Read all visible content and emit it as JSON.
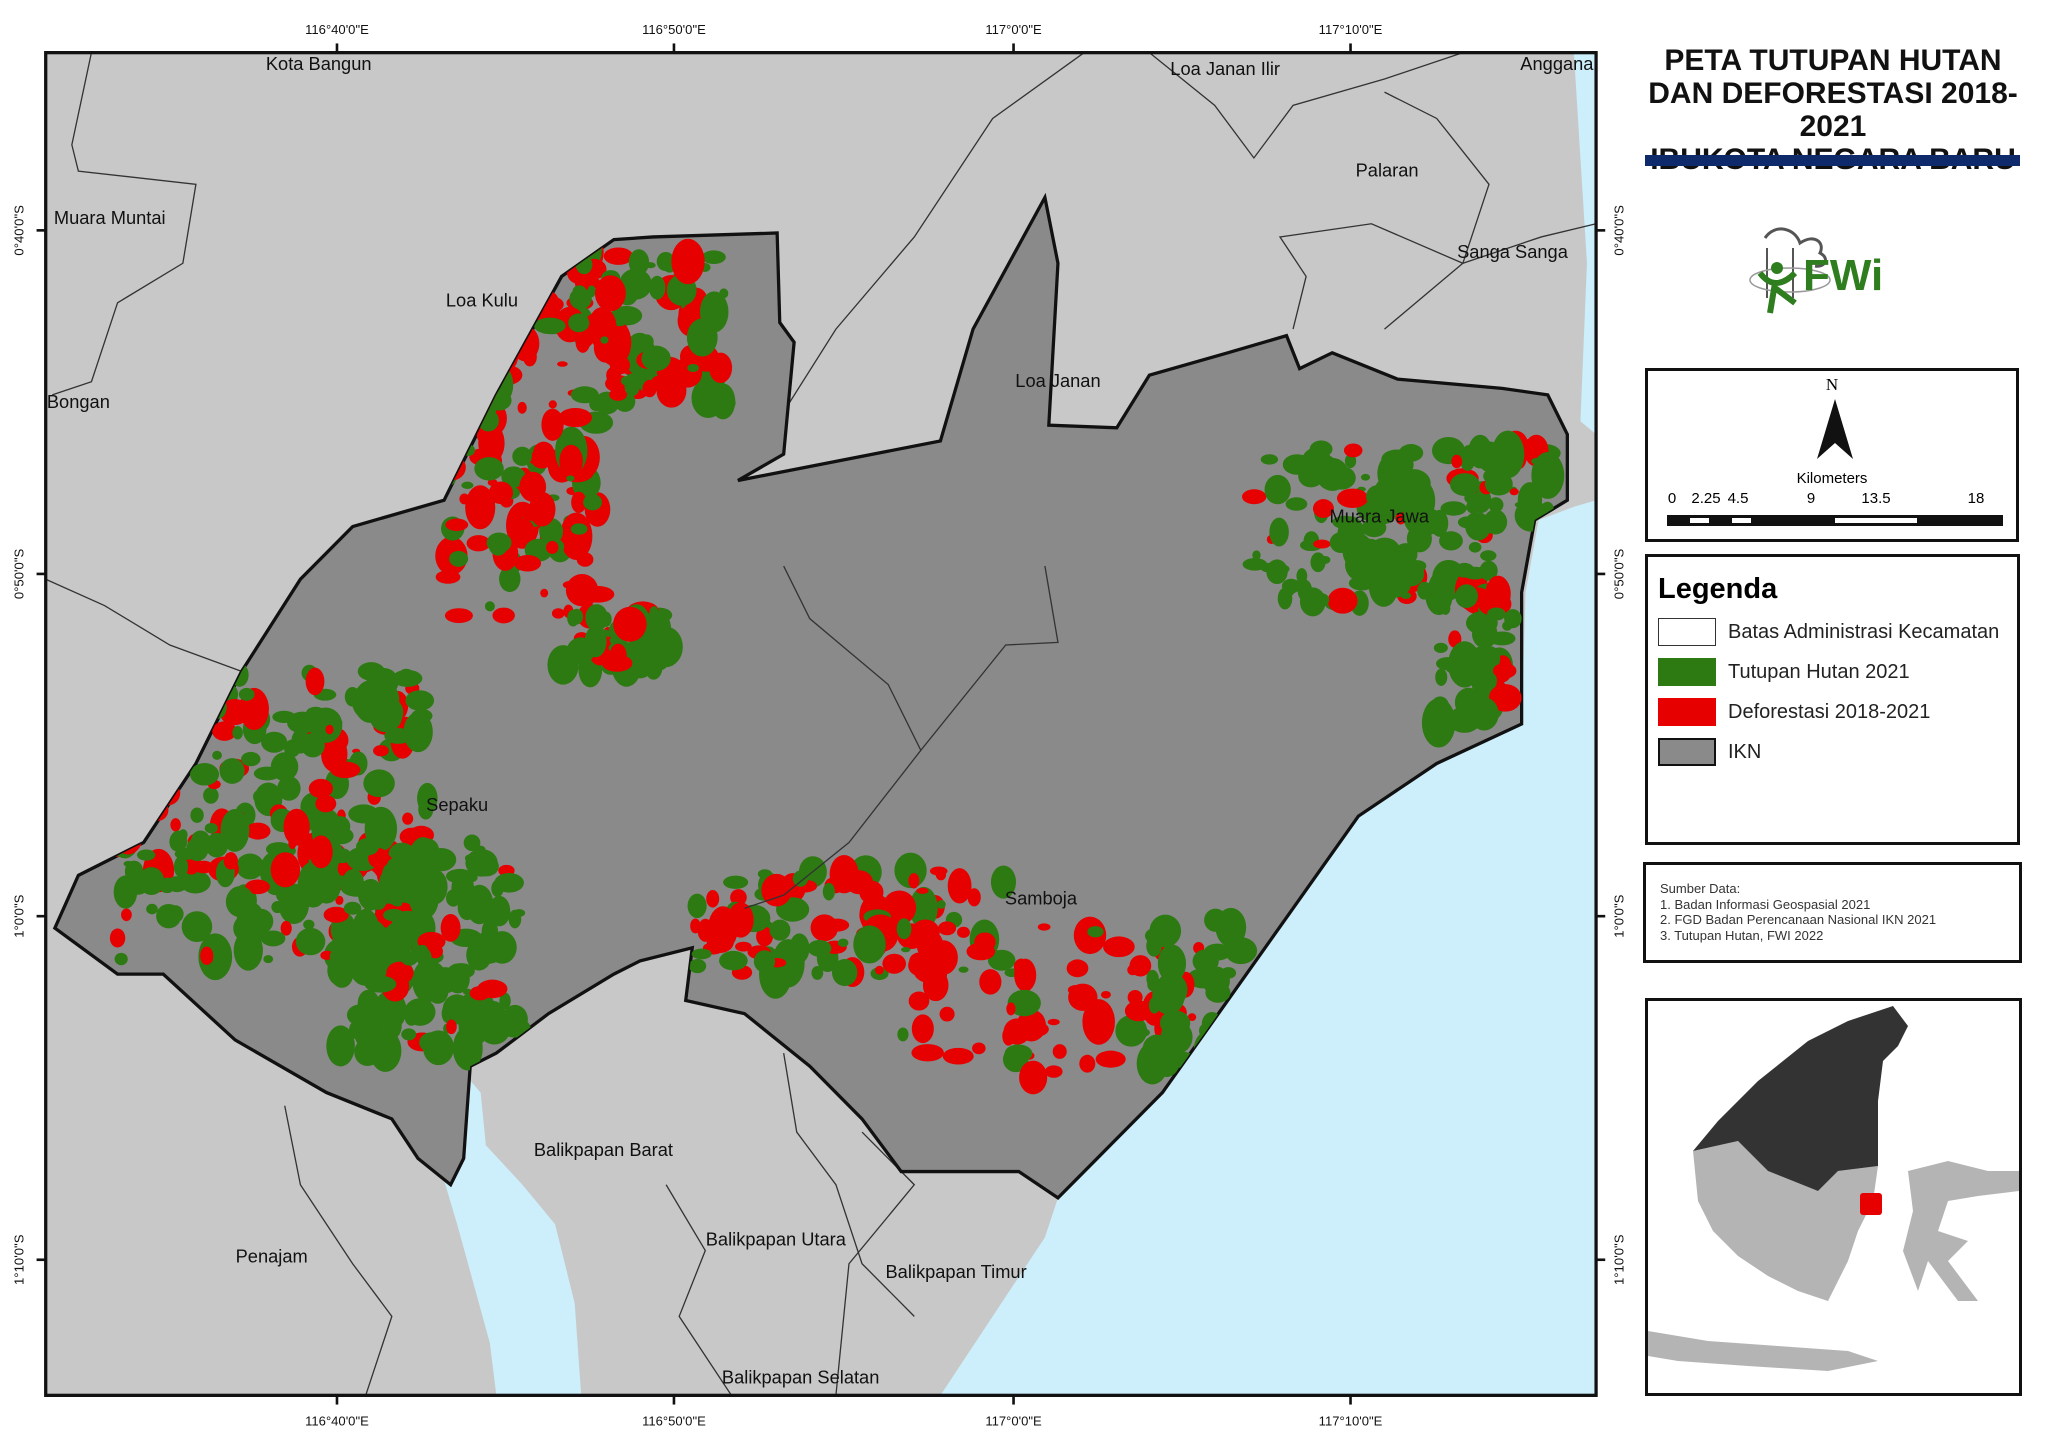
{
  "title": {
    "line1": "PETA TUTUPAN HUTAN",
    "line2": "DAN DEFORESTASI 2018-2021",
    "line3": "IBUKOTA NEGARA BARU",
    "bar_color": "#0e2a6b"
  },
  "logo": {
    "text": "FWi",
    "color": "#2e7d1e"
  },
  "north_arrow": {
    "label": "N"
  },
  "scale_bar": {
    "unit": "Kilometers",
    "ticks": [
      "0",
      "2.25",
      "4.5",
      "9",
      "13.5",
      "18"
    ]
  },
  "legend": {
    "title": "Legenda",
    "items": [
      {
        "label": "Batas Administrasi Kecamatan",
        "color": "#ffffff"
      },
      {
        "label": "Tutupan Hutan 2021",
        "color": "#2d7a12"
      },
      {
        "label": "Deforestasi 2018-2021",
        "color": "#e60000"
      },
      {
        "label": "IKN",
        "color": "#8a8a8a"
      }
    ]
  },
  "sources": {
    "heading": "Sumber Data:",
    "items": [
      "1. Badan Informasi Geospasial 2021",
      "2. FGD Badan Perencanaan Nasional IKN 2021",
      "3. Tutupan Hutan, FWI 2022"
    ]
  },
  "map": {
    "lon_ticks": [
      "116°40'0\"E",
      "116°50'0\"E",
      "117°0'0\"E",
      "117°10'0\"E"
    ],
    "lat_ticks": [
      "0°40'0\"S",
      "0°50'0\"S",
      "1°0'0\"S",
      "1°10'0\"S"
    ],
    "places": [
      "Kota Bangun",
      "Loa Janan Ilir",
      "Anggana",
      "Muara Muntai",
      "Palaran",
      "Sanga Sanga",
      "Loa Kulu",
      "Loa Janan",
      "Bongan",
      "Muara Jawa",
      "Sepaku",
      "Samboja",
      "Balikpapan Barat",
      "Penajam",
      "Balikpapan Utara",
      "Balikpapan Timur",
      "Balikpapan Selatan"
    ],
    "colors": {
      "land": "#c8c8c8",
      "sea": "#cdeefb",
      "ikn": "#8a8a8a",
      "forest": "#2d7a12",
      "deforestation": "#e60000"
    }
  }
}
